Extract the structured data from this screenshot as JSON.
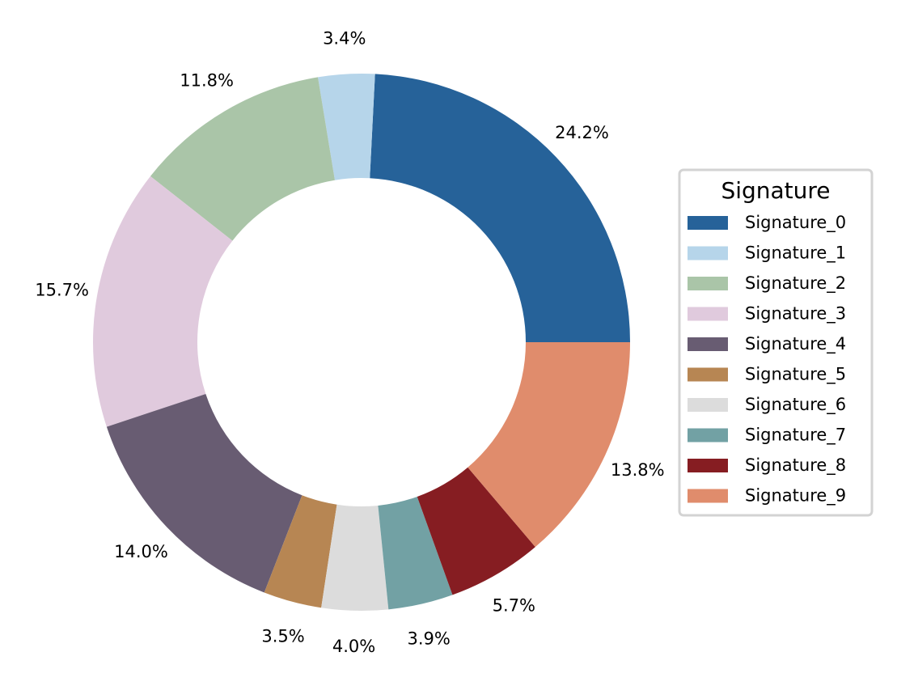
{
  "chart_data": {
    "type": "pie",
    "donut": true,
    "start_angle_deg": 0,
    "direction": "counterclockwise",
    "labels": [
      "Signature_0",
      "Signature_1",
      "Signature_2",
      "Signature_3",
      "Signature_4",
      "Signature_5",
      "Signature_6",
      "Signature_7",
      "Signature_8",
      "Signature_9"
    ],
    "values": [
      24.2,
      3.4,
      11.8,
      15.7,
      14.0,
      3.5,
      4.0,
      3.9,
      5.7,
      13.8
    ],
    "value_labels": [
      "24.2%",
      "3.4%",
      "11.8%",
      "15.7%",
      "14.0%",
      "3.5%",
      "4.0%",
      "3.9%",
      "5.7%",
      "13.8%"
    ],
    "colors": [
      "#266299",
      "#b6d5ea",
      "#aac5a8",
      "#e0cadd",
      "#685c72",
      "#b78653",
      "#dcdcdc",
      "#72a1a4",
      "#861d22",
      "#e08c6c"
    ],
    "legend_title": "Signature",
    "legend_placement": "right"
  }
}
